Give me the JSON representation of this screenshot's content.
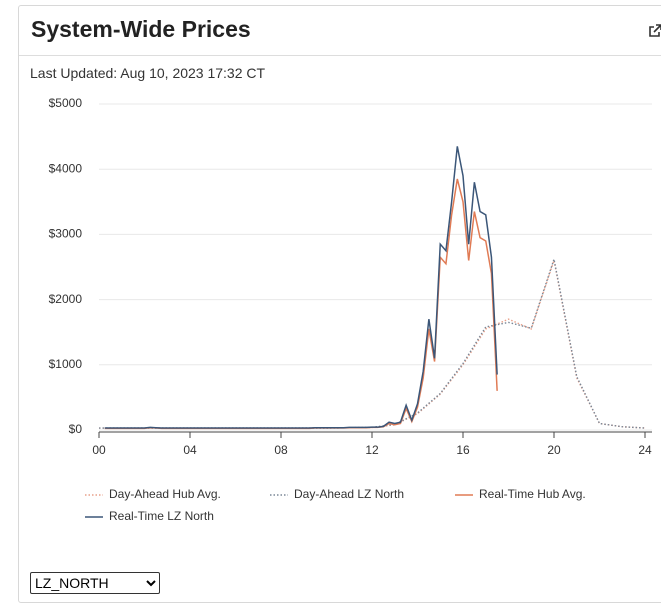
{
  "header": {
    "title": "System-Wide Prices"
  },
  "last_updated": "Last Updated: Aug 10, 2023 17:32 CT",
  "chart_data": {
    "type": "line",
    "legend": "bottom",
    "grid": true,
    "xlim": [
      0,
      24
    ],
    "xticks": [
      {
        "value": 0,
        "label": "00"
      },
      {
        "value": 4,
        "label": "04"
      },
      {
        "value": 8,
        "label": "08"
      },
      12,
      16,
      20,
      24
    ],
    "ylim": [
      0,
      5000
    ],
    "yticks": [
      {
        "value": 0,
        "label": "$0"
      },
      {
        "value": 1000,
        "label": "$1000"
      },
      {
        "value": 2000,
        "label": "$2000"
      },
      {
        "value": 3000,
        "label": "$3000"
      },
      {
        "value": 4000,
        "label": "$4000"
      },
      {
        "value": 5000,
        "label": "$5000"
      }
    ],
    "series": [
      {
        "name": "Day-Ahead Hub Avg.",
        "color": "#e8a08a",
        "dash": "dotted",
        "x": [
          0,
          1,
          2,
          3,
          4,
          5,
          6,
          7,
          8,
          9,
          10,
          11,
          12,
          13,
          14,
          15,
          16,
          17,
          18,
          19,
          20,
          21,
          22,
          23,
          24
        ],
        "values": [
          30,
          30,
          30,
          30,
          30,
          30,
          30,
          30,
          30,
          30,
          30,
          35,
          40,
          80,
          250,
          550,
          1000,
          1550,
          1700,
          1550,
          2600,
          800,
          100,
          50,
          30
        ]
      },
      {
        "name": "Day-Ahead LZ North",
        "color": "#7a8796",
        "dash": "dotted",
        "x": [
          0,
          1,
          2,
          3,
          4,
          5,
          6,
          7,
          8,
          9,
          10,
          11,
          12,
          13,
          14,
          15,
          16,
          17,
          18,
          19,
          20,
          21,
          22,
          23,
          24
        ],
        "values": [
          30,
          30,
          30,
          30,
          30,
          30,
          30,
          30,
          30,
          30,
          30,
          35,
          40,
          85,
          260,
          560,
          1020,
          1580,
          1650,
          1560,
          2620,
          820,
          100,
          50,
          30
        ]
      },
      {
        "name": "Real-Time Hub Avg.",
        "color": "#e07b55",
        "dash": "solid",
        "x": [
          0.25,
          0.5,
          0.75,
          1,
          1.25,
          1.5,
          1.75,
          2,
          2.25,
          2.5,
          2.75,
          3,
          3.25,
          3.5,
          3.75,
          4,
          4.25,
          4.5,
          4.75,
          5,
          5.25,
          5.5,
          5.75,
          6,
          6.25,
          6.5,
          6.75,
          7,
          7.25,
          7.5,
          7.75,
          8,
          8.25,
          8.5,
          8.75,
          9,
          9.25,
          9.5,
          9.75,
          10,
          10.25,
          10.5,
          10.75,
          11,
          11.25,
          11.5,
          11.75,
          12,
          12.25,
          12.5,
          12.75,
          13,
          13.25,
          13.5,
          13.75,
          14,
          14.25,
          14.5,
          14.75,
          15,
          15.25,
          15.5,
          15.75,
          16,
          16.25,
          16.5,
          16.75,
          17,
          17.25,
          17.5
        ],
        "values": [
          25,
          25,
          25,
          25,
          25,
          25,
          25,
          25,
          35,
          30,
          25,
          25,
          25,
          25,
          25,
          25,
          25,
          25,
          25,
          25,
          25,
          25,
          25,
          25,
          25,
          25,
          25,
          25,
          25,
          25,
          25,
          25,
          25,
          25,
          25,
          25,
          25,
          30,
          30,
          30,
          30,
          30,
          30,
          35,
          35,
          35,
          35,
          40,
          40,
          50,
          100,
          80,
          100,
          330,
          130,
          350,
          800,
          1550,
          1050,
          2650,
          2550,
          3300,
          3850,
          3500,
          2600,
          3350,
          2950,
          2900,
          2400,
          600
        ]
      },
      {
        "name": "Real-Time LZ North",
        "color": "#3b5678",
        "dash": "solid",
        "x": [
          0.25,
          0.5,
          0.75,
          1,
          1.25,
          1.5,
          1.75,
          2,
          2.25,
          2.5,
          2.75,
          3,
          3.25,
          3.5,
          3.75,
          4,
          4.25,
          4.5,
          4.75,
          5,
          5.25,
          5.5,
          5.75,
          6,
          6.25,
          6.5,
          6.75,
          7,
          7.25,
          7.5,
          7.75,
          8,
          8.25,
          8.5,
          8.75,
          9,
          9.25,
          9.5,
          9.75,
          10,
          10.25,
          10.5,
          10.75,
          11,
          11.25,
          11.5,
          11.75,
          12,
          12.25,
          12.5,
          12.75,
          13,
          13.25,
          13.5,
          13.75,
          14,
          14.25,
          14.5,
          14.75,
          15,
          15.25,
          15.5,
          15.75,
          16,
          16.25,
          16.5,
          16.75,
          17,
          17.25,
          17.5
        ],
        "values": [
          30,
          30,
          30,
          30,
          30,
          30,
          30,
          30,
          40,
          35,
          30,
          30,
          30,
          30,
          30,
          30,
          30,
          30,
          30,
          30,
          30,
          30,
          30,
          30,
          30,
          30,
          30,
          30,
          30,
          30,
          30,
          30,
          30,
          30,
          30,
          30,
          30,
          35,
          35,
          35,
          35,
          35,
          35,
          40,
          40,
          40,
          40,
          45,
          45,
          55,
          120,
          100,
          120,
          380,
          150,
          400,
          900,
          1700,
          1100,
          2850,
          2750,
          3500,
          4350,
          3900,
          2850,
          3800,
          3350,
          3300,
          2650,
          850
        ]
      }
    ]
  },
  "select": {
    "selected": "LZ_NORTH"
  }
}
